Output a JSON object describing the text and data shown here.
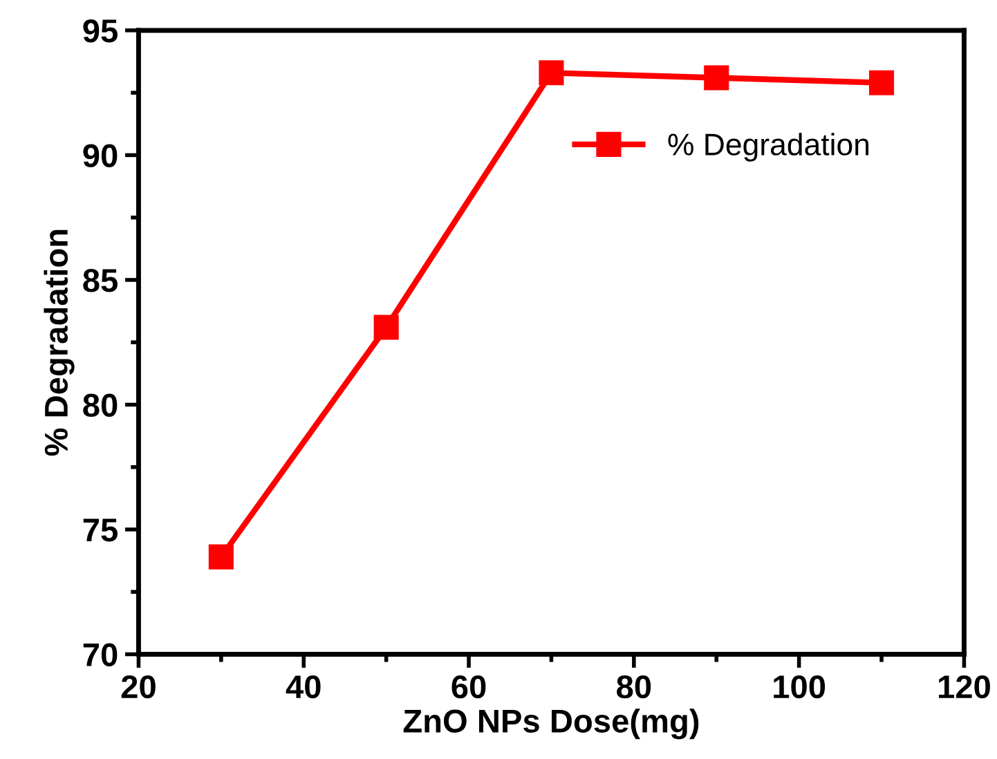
{
  "chart_data": {
    "type": "line",
    "xlabel": "ZnO NPs Dose(mg)",
    "ylabel": "% Degradation",
    "x": [
      30,
      50,
      70,
      90,
      110
    ],
    "series": [
      {
        "name": "% Degradation",
        "color": "#ff0000",
        "values": [
          73.9,
          83.1,
          93.3,
          93.1,
          92.9
        ]
      }
    ],
    "xlim": [
      20,
      120
    ],
    "ylim": [
      70,
      95
    ],
    "xticks": [
      20,
      40,
      60,
      80,
      100,
      120
    ],
    "yticks": [
      70,
      75,
      80,
      85,
      90,
      95
    ],
    "marker": "square",
    "line_style": "solid",
    "grid": false,
    "legend": "top right"
  }
}
